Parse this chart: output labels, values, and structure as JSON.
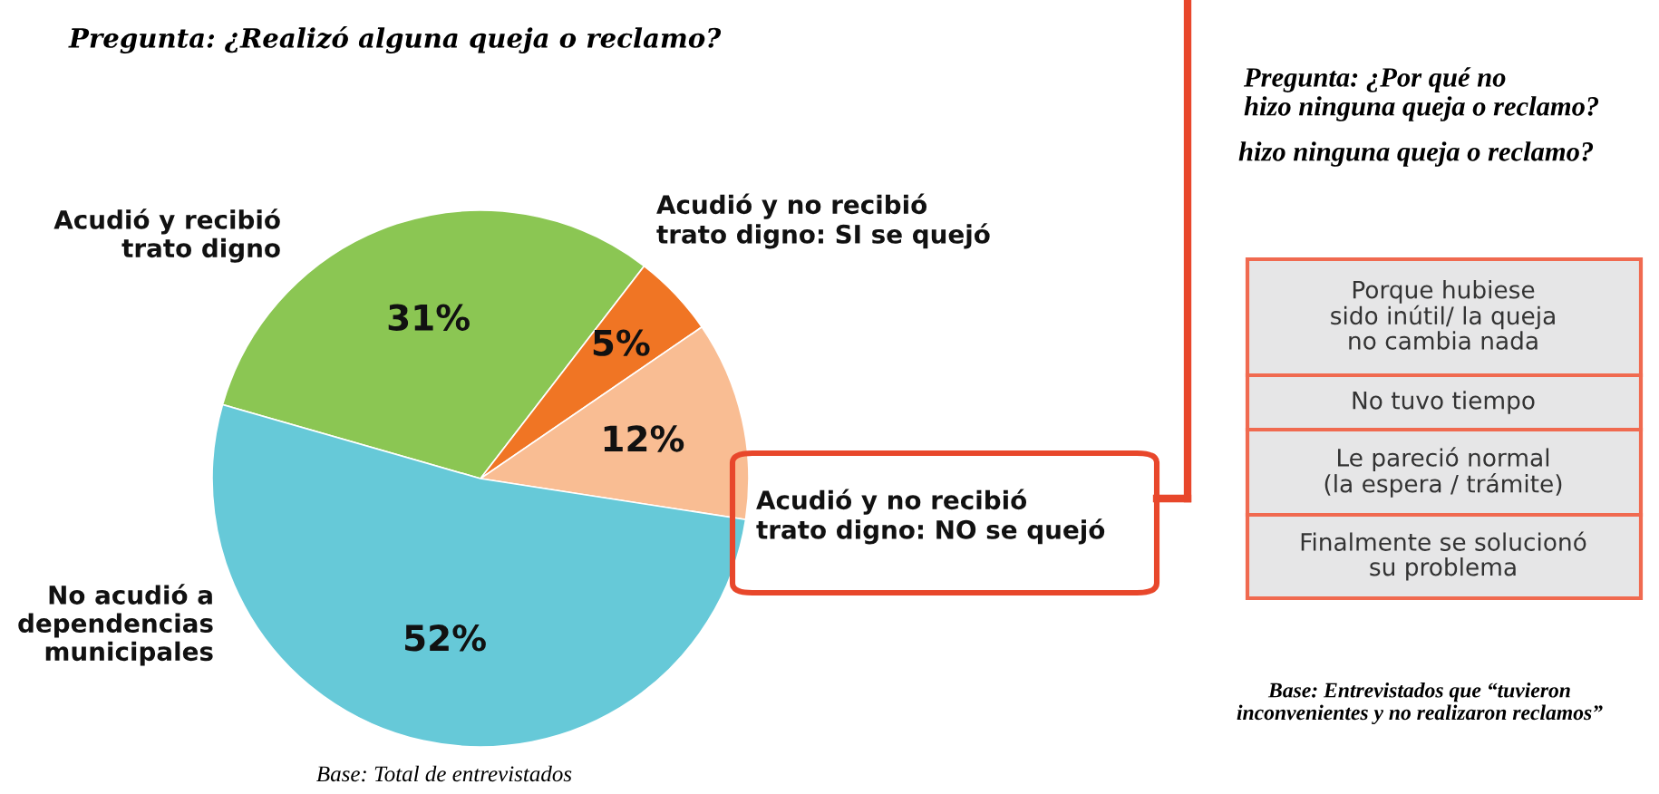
{
  "chart_data": {
    "type": "pie",
    "title": "Pregunta: ¿Realizó alguna queja o reclamo?",
    "categories": [
      "Acudió y recibió trato digno",
      "Acudió y no recibió trato digno: SI se quejó",
      "Acudió y no recibió trato digno: NO se quejó",
      "No acudió a dependencias municipales"
    ],
    "values": [
      31,
      5,
      12,
      52
    ],
    "value_labels": [
      "31%",
      "5%",
      "12%",
      "52%"
    ],
    "colors": [
      "#8bc653",
      "#f07524",
      "#f9bd93",
      "#66c9d8"
    ],
    "annotations": [
      "Base: Total de entrevistados",
      "Pregunta: ¿Por qué no hizo ninguna queja o reclamo?",
      "hizo ninguna queja o reclamo?",
      "Porque hubiese sido inútil/ la queja no cambia nada",
      "No tuvo tiempo",
      "Le pareció normal (la espera / trámite)",
      "Finalmente se solucionó su problema",
      "Base: Entrevistados que “tuvieron inconvenientes y no realizaron reclamos”"
    ]
  }
}
